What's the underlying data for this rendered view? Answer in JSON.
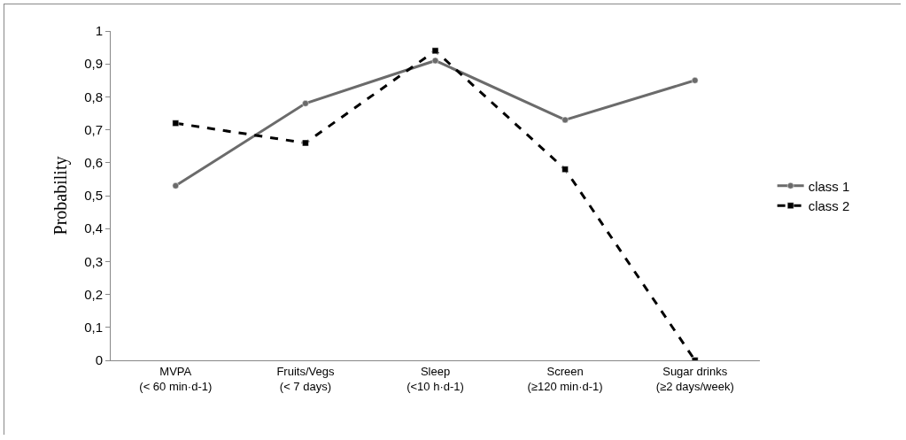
{
  "chart_data": {
    "type": "line",
    "ylabel": "Probability",
    "categories": [
      "MVPA\n(< 60 min·d-1)",
      "Fruits/Vegs\n(< 7 days)",
      "Sleep\n(<10 h·d-1)",
      "Screen\n(≥120 min·d-1)",
      "Sugar drinks\n(≥2 days/week)"
    ],
    "series": [
      {
        "name": "class 1",
        "color": "#6b6b6b",
        "values": [
          0.53,
          0.78,
          0.91,
          0.73,
          0.85
        ],
        "marker": "circle",
        "line_style": "solid"
      },
      {
        "name": "class 2",
        "color": "#000000",
        "values": [
          0.72,
          0.66,
          0.94,
          0.58,
          0
        ],
        "marker": "square",
        "line_style": "dashed"
      }
    ],
    "ylim": [
      0,
      1
    ],
    "yticks": [
      0,
      {
        "value": 0.1,
        "label": "0,1"
      },
      {
        "value": 0.2,
        "label": "0,2"
      },
      {
        "value": 0.3,
        "label": "0,3"
      },
      {
        "value": 0.4,
        "label": "0,4"
      },
      {
        "value": 0.5,
        "label": "0,5"
      },
      {
        "value": 0.6,
        "label": "0,6"
      },
      {
        "value": 0.7,
        "label": "0,7"
      },
      {
        "value": 0.8,
        "label": "0,8"
      },
      {
        "value": 0.9,
        "label": "0,9"
      },
      1
    ],
    "grid": false,
    "legend": "right"
  }
}
